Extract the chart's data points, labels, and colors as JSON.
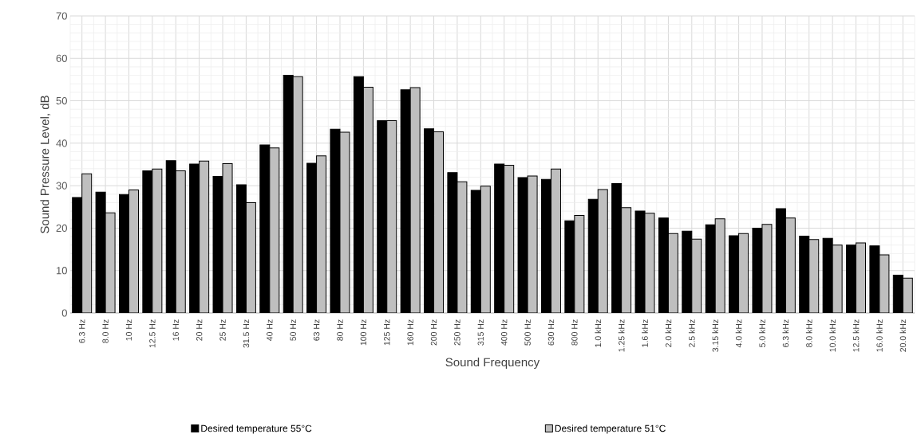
{
  "chart_data": {
    "type": "bar",
    "xlabel": "Sound Frequency",
    "ylabel": "Sound Pressure Level, dB",
    "categories": [
      "6.3 Hz",
      "8.0 Hz",
      "10 Hz",
      "12.5 Hz",
      "16 Hz",
      "20 Hz",
      "25 Hz",
      "31.5 Hz",
      "40 Hz",
      "50 Hz",
      "63 Hz",
      "80 Hz",
      "100 Hz",
      "125 Hz",
      "160 Hz",
      "200 Hz",
      "250 Hz",
      "315 Hz",
      "400 Hz",
      "500 Hz",
      "630 Hz",
      "800 Hz",
      "1.0 kHz",
      "1.25 kHz",
      "1.6 kHz",
      "2.0 kHz",
      "2.5 kHz",
      "3.15 kHz",
      "4.0 kHz",
      "5.0 kHz",
      "6.3 kHz",
      "8.0 kHz",
      "10.0 kHz",
      "12.5 kHz",
      "16.0 kHz",
      "20.0 kHz"
    ],
    "series": [
      {
        "name": "Desired temperature 55°C",
        "color": "#000000",
        "values": [
          27.2,
          28.5,
          27.9,
          33.5,
          35.9,
          35.1,
          32.2,
          30.2,
          39.6,
          56.0,
          35.3,
          43.3,
          55.7,
          45.3,
          52.6,
          43.4,
          33.1,
          28.9,
          35.1,
          31.9,
          31.5,
          21.7,
          26.8,
          30.5,
          24.0,
          22.4,
          19.3,
          20.8,
          18.2,
          20.0,
          24.6,
          18.1,
          17.6,
          16.0,
          15.8,
          8.9
        ]
      },
      {
        "name": "Desired temperature 51°C",
        "color": "#bfbfbf",
        "values": [
          32.8,
          23.6,
          29.0,
          33.9,
          33.5,
          35.8,
          35.2,
          26.0,
          38.9,
          55.7,
          37.0,
          42.6,
          53.2,
          45.3,
          53.1,
          42.7,
          30.9,
          29.9,
          34.8,
          32.3,
          33.9,
          23.0,
          29.1,
          24.8,
          23.5,
          18.7,
          17.4,
          22.2,
          18.7,
          20.9,
          22.4,
          17.3,
          16.0,
          16.5,
          13.7,
          8.2
        ]
      }
    ],
    "ylim": [
      0,
      70
    ],
    "yticks": [
      0,
      10,
      20,
      30,
      40,
      50,
      60,
      70
    ],
    "grid": true,
    "legend": "bottom"
  }
}
